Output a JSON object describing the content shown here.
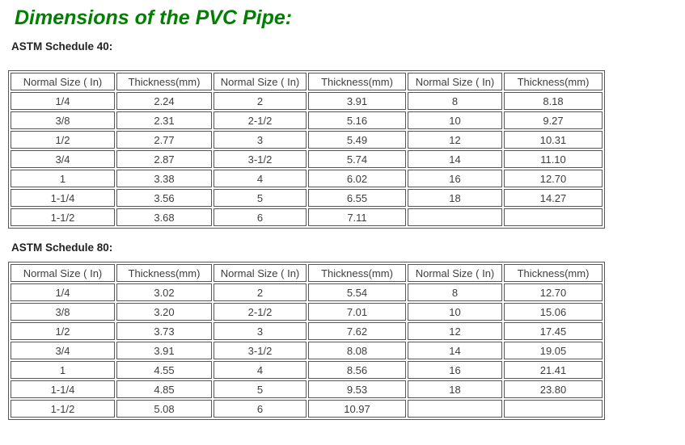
{
  "page": {
    "title": "Dimensions of the PVC Pipe:"
  },
  "colors": {
    "title_green": "#008000",
    "table_border": "#565656",
    "cell_text": "#3e3e3e",
    "heading_text": "#222222"
  },
  "tables": [
    {
      "heading": "ASTM Schedule 40:",
      "headers": [
        "Normal Size ( In)",
        "Thickness(mm)",
        "Normal Size ( In)",
        "Thickness(mm)",
        "Normal Size ( In)",
        "Thickness(mm)"
      ],
      "rows": [
        [
          "1/4",
          "2.24",
          "2",
          "3.91",
          "8",
          "8.18"
        ],
        [
          "3/8",
          "2.31",
          "2-1/2",
          "5.16",
          "10",
          "9.27"
        ],
        [
          "1/2",
          "2.77",
          "3",
          "5.49",
          "12",
          "10.31"
        ],
        [
          "3/4",
          "2.87",
          "3-1/2",
          "5.74",
          "14",
          "11.10"
        ],
        [
          "1",
          "3.38",
          "4",
          "6.02",
          "16",
          "12.70"
        ],
        [
          "1-1/4",
          "3.56",
          "5",
          "6.55",
          "18",
          "14.27"
        ],
        [
          "1-1/2",
          "3.68",
          "6",
          "7.11",
          "",
          ""
        ]
      ]
    },
    {
      "heading": "ASTM Schedule 80:",
      "headers": [
        "Normal Size ( In)",
        "Thickness(mm)",
        "Normal Size ( In)",
        "Thickness(mm)",
        "Normal Size ( In)",
        "Thickness(mm)"
      ],
      "rows": [
        [
          "1/4",
          "3.02",
          "2",
          "5.54",
          "8",
          "12.70"
        ],
        [
          "3/8",
          "3.20",
          "2-1/2",
          "7.01",
          "10",
          "15.06"
        ],
        [
          "1/2",
          "3.73",
          "3",
          "7.62",
          "12",
          "17.45"
        ],
        [
          "3/4",
          "3.91",
          "3-1/2",
          "8.08",
          "14",
          "19.05"
        ],
        [
          "1",
          "4.55",
          "4",
          "8.56",
          "16",
          "21.41"
        ],
        [
          "1-1/4",
          "4.85",
          "5",
          "9.53",
          "18",
          "23.80"
        ],
        [
          "1-1/2",
          "5.08",
          "6",
          "10.97",
          "",
          ""
        ]
      ]
    }
  ]
}
